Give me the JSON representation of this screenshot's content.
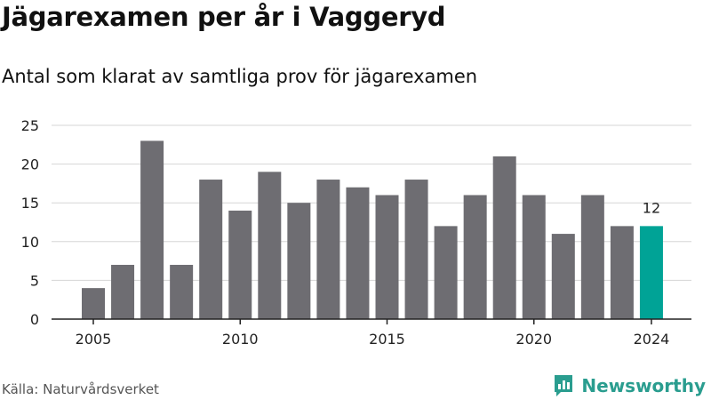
{
  "title": "Jägarexamen per år i Vaggeryd",
  "subtitle": "Antal som klarat av samtliga prov för jägarexamen",
  "source": "Källa: Naturvårdsverket",
  "brand": {
    "name": "Newsworthy",
    "icon": "newsworthy-logo-icon"
  },
  "colors": {
    "bar": "#6e6d72",
    "highlight": "#00a396",
    "grid": "#d6d6d6",
    "brand": "#2a9d8f"
  },
  "chart_data": {
    "type": "bar",
    "x": [
      2005,
      2006,
      2007,
      2008,
      2009,
      2010,
      2011,
      2012,
      2013,
      2014,
      2015,
      2016,
      2017,
      2018,
      2019,
      2020,
      2021,
      2022,
      2023,
      2024
    ],
    "values": [
      4,
      7,
      23,
      7,
      18,
      14,
      19,
      15,
      18,
      17,
      16,
      18,
      12,
      16,
      21,
      16,
      11,
      16,
      12,
      12
    ],
    "highlight_x": 2024,
    "data_label": "12",
    "x_ticks": [
      "2005",
      "2010",
      "2015",
      "2020",
      "2024"
    ],
    "y_ticks": [
      "0",
      "5",
      "10",
      "15",
      "20",
      "25"
    ],
    "ylim": [
      0,
      25
    ],
    "xlabel": "",
    "ylabel": "",
    "grid": true,
    "legend": "none"
  }
}
